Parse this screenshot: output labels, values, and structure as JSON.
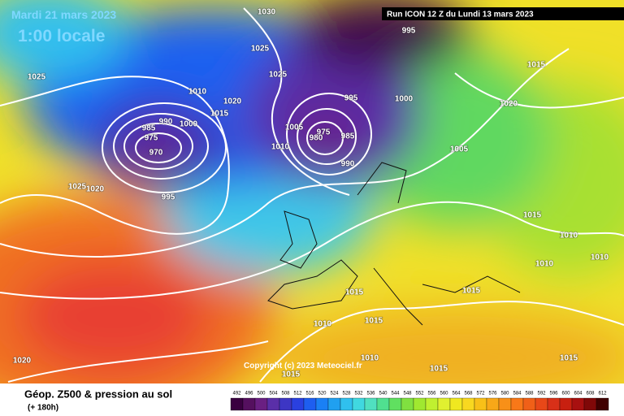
{
  "header": {
    "title": "Mardi 21 mars 2023",
    "subtitle": "1:00 locale",
    "run": "Run ICON 12 Z du Lundi 13 mars 2023"
  },
  "copyright": "Copyright (c) 2023 Meteociel.fr",
  "footer": {
    "title": "Géop. Z500 & pression au sol",
    "lead": "(+ 180h)"
  },
  "legend": {
    "labels": [
      "492",
      "496",
      "500",
      "504",
      "508",
      "512",
      "516",
      "520",
      "524",
      "528",
      "532",
      "536",
      "540",
      "544",
      "548",
      "552",
      "556",
      "560",
      "564",
      "568",
      "572",
      "576",
      "580",
      "584",
      "588",
      "592",
      "596",
      "600",
      "604",
      "608",
      "612"
    ],
    "colors": [
      "#3a0040",
      "#55105f",
      "#6a1f82",
      "#5a2fa8",
      "#3d36c4",
      "#2a40e0",
      "#1e5ef0",
      "#1a80f5",
      "#20a0f0",
      "#30c0ee",
      "#40d8e0",
      "#50e0c0",
      "#50e090",
      "#60e060",
      "#80e040",
      "#a0e830",
      "#c0f030",
      "#e0f030",
      "#f0e820",
      "#f8d820",
      "#f8c018",
      "#f8a818",
      "#f89018",
      "#f87818",
      "#f06018",
      "#e84818",
      "#d83018",
      "#c82010",
      "#a81010",
      "#800808",
      "#400000"
    ]
  },
  "isobars": [
    "1025",
    "1025",
    "1020",
    "995",
    "970",
    "975",
    "985",
    "990",
    "1000",
    "1010",
    "1015",
    "1020",
    "1025",
    "1025",
    "1030",
    "1005",
    "1010",
    "975",
    "980",
    "985",
    "990",
    "995",
    "1000",
    "995",
    "1005",
    "1015",
    "1020",
    "1015",
    "1010",
    "1010",
    "1010",
    "1015",
    "1015",
    "1015",
    "1010",
    "1010",
    "1015",
    "1015",
    "1015",
    "1020"
  ]
}
